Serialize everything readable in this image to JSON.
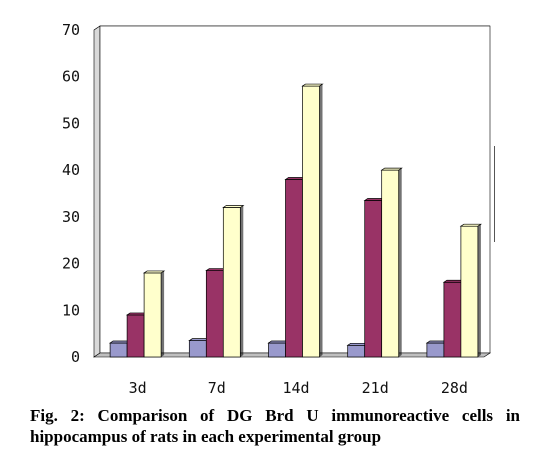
{
  "caption": "Fig. 2: Comparison of DG Brd U immunoreactive cells in hippocampus of rats in each experimental group",
  "colors": {
    "series1": "#9999cc",
    "series2": "#993366",
    "series3": "#ffffcc",
    "plot_bg": "#ffffff",
    "grid": "#000000"
  },
  "chart_data": {
    "type": "bar",
    "title": "",
    "xlabel": "",
    "ylabel": "",
    "categories": [
      "3d",
      "7d",
      "14d",
      "21d",
      "28d"
    ],
    "series": [
      {
        "values": [
          3,
          3.5,
          3,
          2.5,
          3
        ]
      },
      {
        "values": [
          9,
          18.5,
          38,
          33.5,
          16
        ]
      },
      {
        "values": [
          18,
          32,
          58,
          40,
          28
        ]
      }
    ],
    "ylim": [
      0,
      70
    ],
    "yticks": [
      0,
      10,
      20,
      30,
      40,
      50,
      60,
      70
    ],
    "grid": true,
    "legend": "none"
  }
}
